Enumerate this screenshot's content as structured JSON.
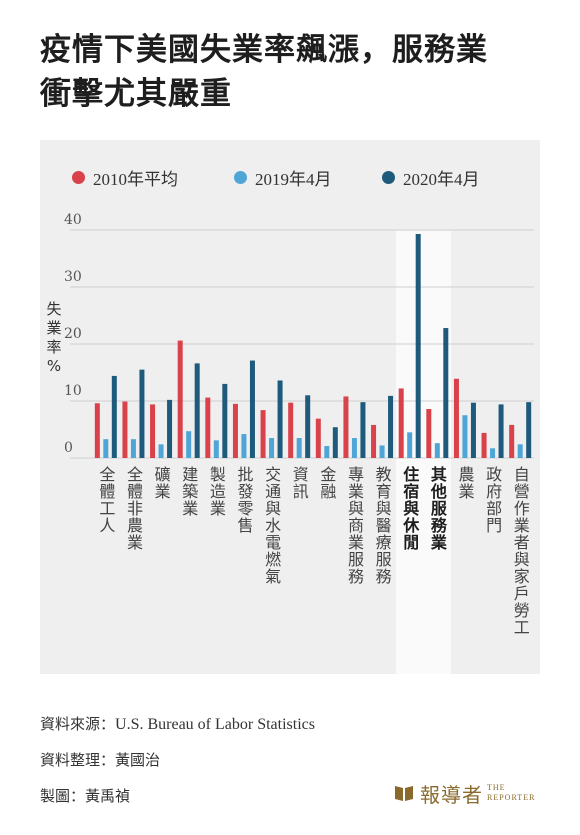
{
  "title": {
    "line1": "疫情下美國失業率飆漲，服務業",
    "line2": "衝擊尤其嚴重"
  },
  "chart_data": {
    "type": "bar",
    "ylabel": "失業率%",
    "ylim": [
      0,
      40
    ],
    "yticks": [
      "0",
      "10",
      "20",
      "30",
      "40"
    ],
    "legend_position": "top",
    "grid": true,
    "categories": [
      "全體工人",
      "全體非農業",
      "礦業",
      "建築業",
      "製造業",
      "批發零售",
      "交通與水電燃氣",
      "資訊",
      "金融",
      "專業與商業服務",
      "教育與醫療服務",
      "住宿與休閒",
      "其他服務業",
      "農業",
      "政府部門",
      "自營作業者與家戶勞工"
    ],
    "highlighted": [
      "住宿與休閒",
      "其他服務業"
    ],
    "series": [
      {
        "name": "2010年平均",
        "color": "#d9414b",
        "values": [
          9.6,
          9.9,
          9.4,
          20.6,
          10.6,
          9.5,
          8.4,
          9.7,
          6.9,
          10.8,
          5.8,
          12.2,
          8.6,
          13.9,
          4.4,
          5.8
        ]
      },
      {
        "name": "2019年4月",
        "color": "#4fa6d6",
        "values": [
          3.3,
          3.3,
          2.4,
          4.7,
          3.1,
          4.2,
          3.5,
          3.5,
          2.1,
          3.5,
          2.2,
          4.5,
          2.6,
          7.5,
          1.7,
          2.4
        ]
      },
      {
        "name": "2020年4月",
        "color": "#1e5a7c",
        "values": [
          14.4,
          15.5,
          10.2,
          16.6,
          13.0,
          17.1,
          13.6,
          11.0,
          5.4,
          9.8,
          10.9,
          39.3,
          22.8,
          9.7,
          9.4,
          9.8
        ]
      }
    ]
  },
  "credits": {
    "source_label": "資料來源：",
    "source_value": "U.S. Bureau of Labor Statistics",
    "compiler_label": "資料整理：",
    "compiler_value": "黃國治",
    "designer_label": "製圖：",
    "designer_value": "黃禹禎"
  },
  "logo": {
    "name": "報導者",
    "en_line1": "THE",
    "en_line2": "REPORTER",
    "color": "#8a6a2c"
  }
}
